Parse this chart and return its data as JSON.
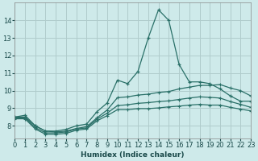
{
  "title": "",
  "xlabel": "Humidex (Indice chaleur)",
  "ylabel": "",
  "background_color": "#ceeaea",
  "grid_color": "#b0cccc",
  "line_color": "#2a7068",
  "x_values": [
    0,
    1,
    2,
    3,
    4,
    5,
    6,
    7,
    8,
    9,
    10,
    11,
    12,
    13,
    14,
    15,
    16,
    17,
    18,
    19,
    20,
    21,
    22,
    23
  ],
  "series": [
    [
      8.5,
      8.6,
      8.0,
      7.7,
      7.7,
      7.8,
      8.0,
      8.1,
      8.8,
      9.3,
      10.6,
      10.4,
      11.1,
      13.0,
      14.6,
      14.0,
      11.5,
      10.5,
      10.5,
      10.4,
      10.1,
      9.7,
      9.4,
      9.4
    ],
    [
      8.5,
      8.5,
      8.0,
      7.7,
      7.65,
      7.7,
      7.85,
      7.95,
      8.45,
      8.9,
      9.6,
      9.65,
      9.75,
      9.8,
      9.9,
      9.95,
      10.1,
      10.2,
      10.3,
      10.3,
      10.35,
      10.15,
      10.0,
      9.7
    ],
    [
      8.45,
      8.45,
      7.9,
      7.6,
      7.6,
      7.65,
      7.82,
      7.88,
      8.38,
      8.72,
      9.15,
      9.2,
      9.28,
      9.32,
      9.38,
      9.42,
      9.5,
      9.58,
      9.65,
      9.62,
      9.58,
      9.38,
      9.22,
      9.05
    ],
    [
      8.4,
      8.4,
      7.82,
      7.52,
      7.52,
      7.57,
      7.75,
      7.82,
      8.28,
      8.58,
      8.92,
      8.92,
      8.98,
      8.98,
      9.02,
      9.08,
      9.12,
      9.18,
      9.22,
      9.18,
      9.18,
      9.05,
      8.95,
      8.85
    ]
  ],
  "ylim": [
    7.3,
    15.0
  ],
  "xlim": [
    0,
    23
  ],
  "yticks": [
    8,
    9,
    10,
    11,
    12,
    13,
    14
  ],
  "xticks": [
    0,
    1,
    2,
    3,
    4,
    5,
    6,
    7,
    8,
    9,
    10,
    11,
    12,
    13,
    14,
    15,
    16,
    17,
    18,
    19,
    20,
    21,
    22,
    23
  ],
  "xtick_labels": [
    "0",
    "1",
    "2",
    "3",
    "4",
    "5",
    "6",
    "7",
    "8",
    "9",
    "10",
    "11",
    "12",
    "13",
    "14",
    "15",
    "16",
    "17",
    "18",
    "19",
    "20",
    "21",
    "22",
    "23"
  ]
}
